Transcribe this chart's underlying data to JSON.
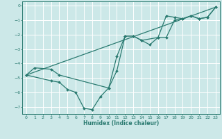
{
  "title": "",
  "xlabel": "Humidex (Indice chaleur)",
  "bg_color": "#cce8e8",
  "grid_color": "#ffffff",
  "line_color": "#2a7a70",
  "xlim": [
    -0.5,
    23.5
  ],
  "ylim": [
    -7.5,
    0.3
  ],
  "yticks": [
    0,
    -1,
    -2,
    -3,
    -4,
    -5,
    -6,
    -7
  ],
  "xticks": [
    0,
    1,
    2,
    3,
    4,
    5,
    6,
    7,
    8,
    9,
    10,
    11,
    12,
    13,
    14,
    15,
    16,
    17,
    18,
    19,
    20,
    21,
    22,
    23
  ],
  "line1_x": [
    0,
    1,
    3,
    4,
    10,
    11,
    12,
    13,
    14,
    15,
    16,
    17,
    18,
    19,
    20,
    21,
    22,
    23
  ],
  "line1_y": [
    -4.8,
    -4.3,
    -4.4,
    -4.8,
    -5.7,
    -4.5,
    -2.1,
    -2.1,
    -2.4,
    -2.7,
    -2.2,
    -0.7,
    -0.8,
    -0.9,
    -0.7,
    -0.9,
    -0.8,
    -0.1
  ],
  "line2_x": [
    0,
    3,
    4,
    5,
    6,
    7,
    8,
    9,
    10,
    11,
    12,
    13,
    14,
    16,
    17,
    18,
    19,
    20,
    21,
    22,
    23
  ],
  "line2_y": [
    -4.8,
    -5.2,
    -5.3,
    -5.8,
    -6.0,
    -7.1,
    -7.2,
    -6.3,
    -5.7,
    -3.5,
    -2.1,
    -2.1,
    -2.4,
    -2.2,
    -2.2,
    -1.0,
    -0.9,
    -0.7,
    -0.9,
    -0.8,
    -0.1
  ],
  "line3_x": [
    0,
    23
  ],
  "line3_y": [
    -4.8,
    -0.1
  ]
}
